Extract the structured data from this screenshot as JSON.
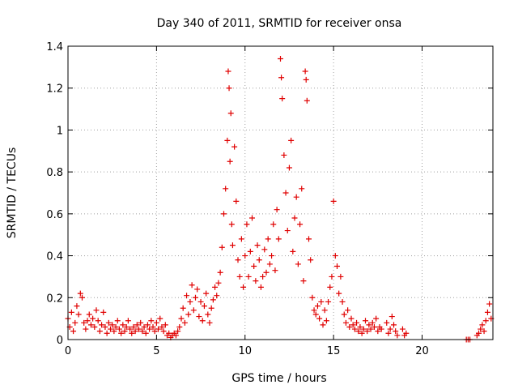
{
  "chart_data": {
    "type": "scatter",
    "title": "Day 340 of 2011, SRMTID for receiver onsa",
    "xlabel": "GPS time / hours",
    "ylabel": "SRMTID / TECUs",
    "xlim": [
      0,
      24
    ],
    "ylim": [
      0,
      1.4
    ],
    "xticks": [
      0,
      5,
      10,
      15,
      20
    ],
    "xtick_labels": [
      "0",
      "5",
      "10",
      "15",
      "20"
    ],
    "yticks": [
      0,
      0.2,
      0.4,
      0.6,
      0.8,
      1,
      1.2,
      1.4
    ],
    "ytick_labels": [
      "0",
      "0.2",
      "0.4",
      "0.6",
      "0.8",
      "1",
      "1.2",
      "1.4"
    ],
    "grid": true,
    "marker": "+",
    "color": "#e00000",
    "series": [
      {
        "name": "SRMTID",
        "points": [
          [
            0.0,
            0.1
          ],
          [
            0.1,
            0.06
          ],
          [
            0.2,
            0.13
          ],
          [
            0.3,
            0.04
          ],
          [
            0.4,
            0.08
          ],
          [
            0.5,
            0.16
          ],
          [
            0.6,
            0.12
          ],
          [
            0.7,
            0.22
          ],
          [
            0.8,
            0.2
          ],
          [
            0.9,
            0.08
          ],
          [
            1.0,
            0.05
          ],
          [
            1.1,
            0.09
          ],
          [
            1.2,
            0.12
          ],
          [
            1.3,
            0.07
          ],
          [
            1.4,
            0.1
          ],
          [
            1.5,
            0.06
          ],
          [
            1.6,
            0.14
          ],
          [
            1.7,
            0.09
          ],
          [
            1.8,
            0.04
          ],
          [
            1.9,
            0.07
          ],
          [
            2.0,
            0.13
          ],
          [
            2.1,
            0.06
          ],
          [
            2.2,
            0.03
          ],
          [
            2.3,
            0.08
          ],
          [
            2.4,
            0.05
          ],
          [
            2.5,
            0.07
          ],
          [
            2.6,
            0.04
          ],
          [
            2.7,
            0.06
          ],
          [
            2.8,
            0.09
          ],
          [
            2.9,
            0.05
          ],
          [
            3.0,
            0.03
          ],
          [
            3.1,
            0.07
          ],
          [
            3.2,
            0.04
          ],
          [
            3.3,
            0.06
          ],
          [
            3.4,
            0.09
          ],
          [
            3.5,
            0.05
          ],
          [
            3.6,
            0.03
          ],
          [
            3.7,
            0.06
          ],
          [
            3.8,
            0.04
          ],
          [
            3.9,
            0.07
          ],
          [
            4.0,
            0.05
          ],
          [
            4.1,
            0.08
          ],
          [
            4.2,
            0.04
          ],
          [
            4.3,
            0.06
          ],
          [
            4.4,
            0.03
          ],
          [
            4.5,
            0.07
          ],
          [
            4.6,
            0.05
          ],
          [
            4.7,
            0.09
          ],
          [
            4.8,
            0.06
          ],
          [
            4.9,
            0.04
          ],
          [
            5.0,
            0.08
          ],
          [
            5.1,
            0.05
          ],
          [
            5.2,
            0.1
          ],
          [
            5.3,
            0.06
          ],
          [
            5.4,
            0.04
          ],
          [
            5.5,
            0.07
          ],
          [
            5.6,
            0.02
          ],
          [
            5.7,
            0.03
          ],
          [
            5.8,
            0.01
          ],
          [
            5.9,
            0.02
          ],
          [
            6.0,
            0.03
          ],
          [
            6.1,
            0.02
          ],
          [
            6.2,
            0.04
          ],
          [
            6.3,
            0.06
          ],
          [
            6.4,
            0.1
          ],
          [
            6.5,
            0.15
          ],
          [
            6.6,
            0.08
          ],
          [
            6.7,
            0.21
          ],
          [
            6.8,
            0.12
          ],
          [
            6.9,
            0.18
          ],
          [
            7.0,
            0.26
          ],
          [
            7.1,
            0.14
          ],
          [
            7.2,
            0.2
          ],
          [
            7.3,
            0.24
          ],
          [
            7.4,
            0.11
          ],
          [
            7.5,
            0.18
          ],
          [
            7.6,
            0.09
          ],
          [
            7.7,
            0.16
          ],
          [
            7.8,
            0.22
          ],
          [
            7.9,
            0.12
          ],
          [
            8.0,
            0.08
          ],
          [
            8.1,
            0.15
          ],
          [
            8.2,
            0.19
          ],
          [
            8.3,
            0.25
          ],
          [
            8.4,
            0.21
          ],
          [
            8.5,
            0.27
          ],
          [
            8.6,
            0.32
          ],
          [
            8.7,
            0.44
          ],
          [
            8.8,
            0.6
          ],
          [
            8.9,
            0.72
          ],
          [
            9.0,
            0.95
          ],
          [
            9.05,
            1.28
          ],
          [
            9.1,
            1.2
          ],
          [
            9.15,
            0.85
          ],
          [
            9.2,
            1.08
          ],
          [
            9.25,
            0.55
          ],
          [
            9.3,
            0.45
          ],
          [
            9.4,
            0.92
          ],
          [
            9.5,
            0.66
          ],
          [
            9.6,
            0.38
          ],
          [
            9.7,
            0.3
          ],
          [
            9.8,
            0.48
          ],
          [
            9.9,
            0.25
          ],
          [
            10.0,
            0.4
          ],
          [
            10.1,
            0.55
          ],
          [
            10.2,
            0.3
          ],
          [
            10.3,
            0.42
          ],
          [
            10.4,
            0.58
          ],
          [
            10.5,
            0.35
          ],
          [
            10.6,
            0.28
          ],
          [
            10.7,
            0.45
          ],
          [
            10.8,
            0.38
          ],
          [
            10.9,
            0.25
          ],
          [
            11.0,
            0.3
          ],
          [
            11.1,
            0.43
          ],
          [
            11.2,
            0.32
          ],
          [
            11.3,
            0.48
          ],
          [
            11.4,
            0.36
          ],
          [
            11.5,
            0.4
          ],
          [
            11.6,
            0.55
          ],
          [
            11.7,
            0.33
          ],
          [
            11.8,
            0.62
          ],
          [
            11.9,
            0.48
          ],
          [
            12.0,
            1.34
          ],
          [
            12.05,
            1.25
          ],
          [
            12.1,
            1.15
          ],
          [
            12.2,
            0.88
          ],
          [
            12.3,
            0.7
          ],
          [
            12.4,
            0.52
          ],
          [
            12.5,
            0.82
          ],
          [
            12.6,
            0.95
          ],
          [
            12.7,
            0.42
          ],
          [
            12.8,
            0.58
          ],
          [
            12.9,
            0.68
          ],
          [
            13.0,
            0.36
          ],
          [
            13.1,
            0.55
          ],
          [
            13.2,
            0.72
          ],
          [
            13.3,
            0.28
          ],
          [
            13.4,
            1.28
          ],
          [
            13.45,
            1.24
          ],
          [
            13.5,
            1.14
          ],
          [
            13.6,
            0.48
          ],
          [
            13.7,
            0.38
          ],
          [
            13.8,
            0.2
          ],
          [
            13.9,
            0.14
          ],
          [
            14.0,
            0.12
          ],
          [
            14.1,
            0.16
          ],
          [
            14.2,
            0.1
          ],
          [
            14.3,
            0.18
          ],
          [
            14.4,
            0.07
          ],
          [
            14.5,
            0.14
          ],
          [
            14.6,
            0.09
          ],
          [
            14.7,
            0.18
          ],
          [
            14.8,
            0.25
          ],
          [
            14.9,
            0.3
          ],
          [
            15.0,
            0.66
          ],
          [
            15.1,
            0.4
          ],
          [
            15.2,
            0.35
          ],
          [
            15.3,
            0.22
          ],
          [
            15.4,
            0.3
          ],
          [
            15.5,
            0.18
          ],
          [
            15.6,
            0.12
          ],
          [
            15.7,
            0.08
          ],
          [
            15.8,
            0.14
          ],
          [
            15.9,
            0.06
          ],
          [
            16.0,
            0.1
          ],
          [
            16.1,
            0.07
          ],
          [
            16.2,
            0.05
          ],
          [
            16.3,
            0.08
          ],
          [
            16.4,
            0.04
          ],
          [
            16.5,
            0.06
          ],
          [
            16.6,
            0.03
          ],
          [
            16.7,
            0.05
          ],
          [
            16.8,
            0.09
          ],
          [
            16.9,
            0.04
          ],
          [
            17.0,
            0.07
          ],
          [
            17.1,
            0.05
          ],
          [
            17.2,
            0.08
          ],
          [
            17.3,
            0.06
          ],
          [
            17.4,
            0.1
          ],
          [
            17.5,
            0.04
          ],
          [
            17.6,
            0.06
          ],
          [
            17.7,
            0.05
          ],
          [
            18.0,
            0.08
          ],
          [
            18.1,
            0.03
          ],
          [
            18.2,
            0.05
          ],
          [
            18.3,
            0.11
          ],
          [
            18.4,
            0.07
          ],
          [
            18.5,
            0.04
          ],
          [
            18.6,
            0.02
          ],
          [
            18.9,
            0.05
          ],
          [
            19.0,
            0.02
          ],
          [
            19.1,
            0.03
          ],
          [
            22.5,
            0.0
          ],
          [
            22.6,
            0.0
          ],
          [
            22.7,
            0.0
          ],
          [
            23.1,
            0.02
          ],
          [
            23.2,
            0.03
          ],
          [
            23.3,
            0.05
          ],
          [
            23.4,
            0.07
          ],
          [
            23.5,
            0.04
          ],
          [
            23.6,
            0.09
          ],
          [
            23.7,
            0.13
          ],
          [
            23.8,
            0.17
          ],
          [
            23.9,
            0.1
          ]
        ]
      }
    ]
  }
}
